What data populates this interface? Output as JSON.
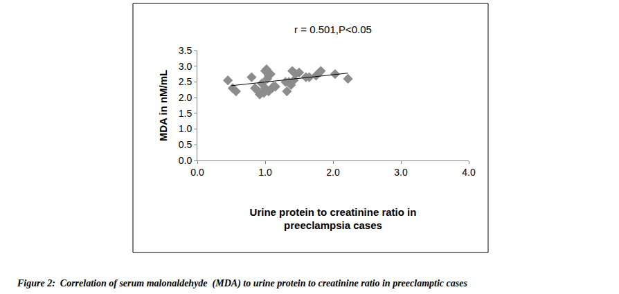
{
  "chart_data": {
    "type": "scatter",
    "title": "r = 0.501,P<0.05",
    "x_label": "Urine protein to creatinine ratio in preeclampsia cases",
    "y_label": "MDA in nM/mL",
    "caption": "Figure 2:  Correlation of serum malonaldehyde  (MDA) to urine protein to creatinine ratio in preeclamptic cases",
    "xlim": [
      0,
      4
    ],
    "ylim": [
      0,
      3.5
    ],
    "xticks": [
      {
        "value": 0,
        "label": "0.0"
      },
      {
        "value": 1,
        "label": "1.0"
      },
      {
        "value": 2,
        "label": "2.0"
      },
      {
        "value": 3,
        "label": "3.0"
      },
      {
        "value": 4,
        "label": "4.0"
      }
    ],
    "yticks": [
      {
        "value": 0,
        "label": "0.0"
      },
      {
        "value": 0.5,
        "label": "0.5"
      },
      {
        "value": 1,
        "label": "1.0"
      },
      {
        "value": 1.5,
        "label": "1.5"
      },
      {
        "value": 2,
        "label": "2.0"
      },
      {
        "value": 2.5,
        "label": "2.5"
      },
      {
        "value": 3,
        "label": "3.0"
      },
      {
        "value": 3.5,
        "label": "3.5"
      }
    ],
    "grid": false,
    "series": [
      {
        "type": "scatter",
        "marker": "diamond",
        "color": "#8c8c8c",
        "x": [
          0.45,
          0.52,
          0.57,
          0.8,
          0.85,
          0.9,
          0.92,
          0.95,
          0.98,
          1.0,
          1.0,
          1.02,
          1.03,
          1.05,
          1.05,
          1.08,
          1.1,
          1.12,
          1.15,
          1.3,
          1.32,
          1.35,
          1.38,
          1.4,
          1.42,
          1.45,
          1.5,
          1.6,
          1.65,
          1.75,
          1.8,
          1.82,
          2.03,
          2.22
        ],
        "values": [
          2.55,
          2.3,
          2.2,
          2.65,
          2.3,
          2.2,
          2.1,
          2.45,
          2.15,
          2.3,
          2.85,
          2.9,
          2.6,
          2.7,
          2.2,
          2.75,
          2.3,
          2.35,
          2.35,
          2.5,
          2.2,
          2.5,
          2.4,
          2.85,
          2.55,
          2.75,
          2.8,
          2.65,
          2.65,
          2.7,
          2.8,
          2.85,
          2.75,
          2.6
        ]
      },
      {
        "type": "line",
        "line_style": "solid",
        "color": "#000000",
        "x": [
          0.5,
          2.22
        ],
        "values": [
          2.38,
          2.78
        ]
      }
    ]
  }
}
